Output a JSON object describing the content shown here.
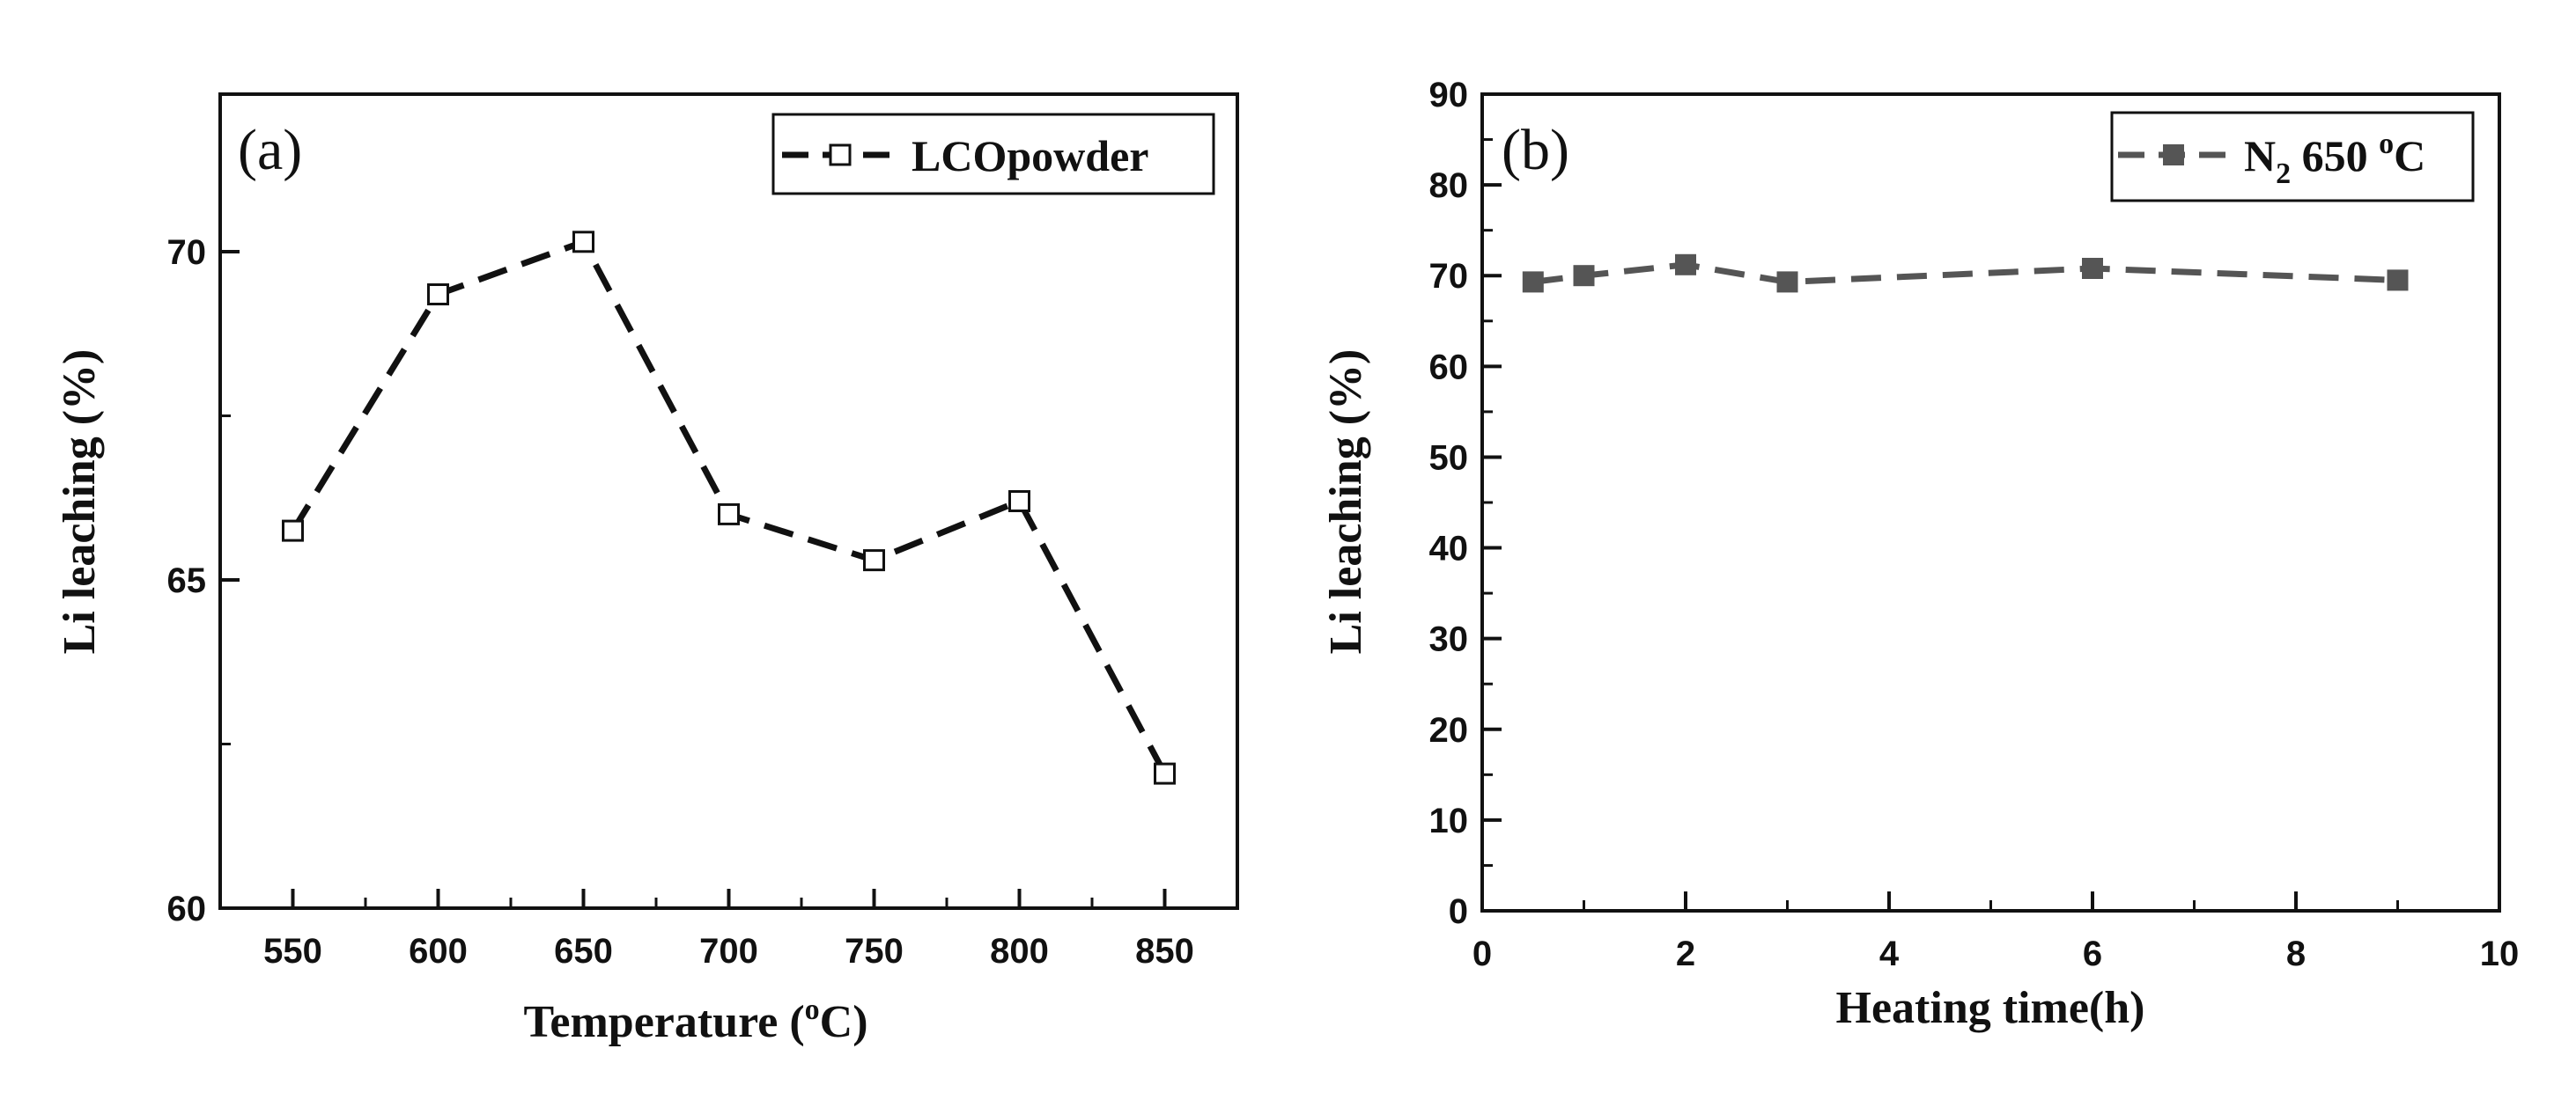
{
  "chart_data": [
    {
      "type": "line",
      "panel_label": "(a)",
      "x": [
        550,
        600,
        650,
        700,
        750,
        800,
        850
      ],
      "series": [
        {
          "name": "LCOpowder",
          "values": [
            65.75,
            69.35,
            70.15,
            66.0,
            65.3,
            66.2,
            62.05
          ],
          "color": "#111111",
          "marker": "open-square",
          "line": "dashed"
        }
      ],
      "xlabel": "Temperature (°C)",
      "xlabel_pre": "Temperature (",
      "xlabel_sup": "o",
      "xlabel_post": "C)",
      "ylabel": "Li leaching (%)",
      "xlim": [
        525,
        875
      ],
      "ylim": [
        60,
        72.4
      ],
      "xticks": [
        "550",
        "600",
        "650",
        "700",
        "750",
        "800",
        "850"
      ],
      "yticks": [
        "60",
        "65",
        "70"
      ],
      "legend": {
        "label": "LCOpowder",
        "position": "top-right"
      }
    },
    {
      "type": "line",
      "panel_label": "(b)",
      "x": [
        0.5,
        1,
        2,
        3,
        6,
        9
      ],
      "series": [
        {
          "name": "N2 650 °C",
          "values": [
            69.3,
            70.0,
            71.2,
            69.3,
            70.8,
            69.5
          ],
          "color": "#555555",
          "marker": "filled-square",
          "line": "dashed"
        }
      ],
      "xlabel": "Heating time(h)",
      "ylabel": "Li leaching (%)",
      "xlim": [
        0,
        10
      ],
      "ylim": [
        0,
        90
      ],
      "xticks": [
        "0",
        "2",
        "4",
        "6",
        "8",
        "10"
      ],
      "yticks": [
        "0",
        "10",
        "20",
        "30",
        "40",
        "50",
        "60",
        "70",
        "80",
        "90"
      ],
      "legend": {
        "label": "N2 650 °C",
        "label_main": "N",
        "label_sub": "2",
        "label_rest": " 650 ",
        "label_sup": "o",
        "label_end": "C",
        "position": "top-right"
      }
    }
  ]
}
